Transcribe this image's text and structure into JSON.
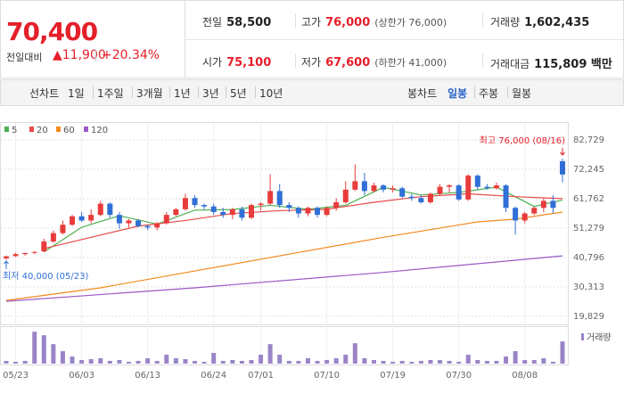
{
  "header": {
    "price": "70,400",
    "change_label": "전일대비",
    "change": "▲11,900",
    "change_pct": "+20.34%",
    "info": [
      {
        "label": "전일",
        "value": "58,500"
      },
      {
        "label": "고가",
        "value": "76,000",
        "note": "(상한가 76,000)"
      },
      {
        "label": "거래량",
        "value": "1,602,435"
      },
      {
        "label": "시가",
        "value": "75,100"
      },
      {
        "label": "저가",
        "value": "67,600",
        "note": "(하한가 41,000)"
      },
      {
        "label": "거래대금",
        "value": "115,809 백만"
      }
    ]
  },
  "toolbar": {
    "line_chart": "선차트",
    "periods": [
      "1일",
      "1주일",
      "3개월",
      "1년",
      "3년",
      "5년",
      "10년"
    ],
    "candle_chart": "봉차트",
    "candle_periods": [
      "일봉",
      "주봉",
      "월봉"
    ]
  },
  "chart_data": {
    "type": "candlestick",
    "categories": [
      null,
      "05/23",
      null,
      null,
      null,
      null,
      null,
      null,
      "06/03",
      null,
      null,
      null,
      null,
      null,
      null,
      "06/13",
      null,
      null,
      null,
      null,
      null,
      null,
      "06/24",
      null,
      null,
      null,
      null,
      "07/01",
      null,
      null,
      null,
      null,
      null,
      null,
      "07/10",
      null,
      null,
      null,
      null,
      null,
      null,
      "07/19",
      null,
      null,
      null,
      null,
      null,
      null,
      "07/30",
      null,
      null,
      null,
      null,
      null,
      null,
      "08/08",
      null,
      null,
      null,
      null
    ],
    "open": [
      40500,
      41300,
      42000,
      42500,
      43000,
      46500,
      49500,
      52500,
      55500,
      54000,
      56000,
      60000,
      56000,
      53000,
      54000,
      52000,
      51500,
      53000,
      56000,
      58000,
      62000,
      59500,
      59000,
      57000,
      56000,
      58000,
      55000,
      59500,
      60000,
      64500,
      59500,
      58500,
      56500,
      58500,
      56000,
      58500,
      60500,
      65000,
      68000,
      64500,
      66500,
      65000,
      65500,
      62500,
      62000,
      60500,
      63500,
      66000,
      66500,
      61500,
      70000,
      66000,
      65500,
      66500,
      58500,
      54000,
      56500,
      58500,
      61000,
      75100
    ],
    "high": [
      41500,
      42500,
      42500,
      43000,
      47500,
      50500,
      54000,
      56000,
      57000,
      58000,
      61000,
      60500,
      57000,
      54500,
      54500,
      52500,
      53500,
      57000,
      58500,
      63500,
      63000,
      60000,
      60000,
      58500,
      58500,
      59000,
      60000,
      60500,
      70500,
      67000,
      60500,
      59000,
      59000,
      59000,
      59000,
      62000,
      68000,
      74000,
      71000,
      67500,
      67000,
      66500,
      66000,
      63500,
      63000,
      64000,
      67000,
      67000,
      67000,
      70500,
      70500,
      67000,
      67500,
      67000,
      59000,
      57000,
      59000,
      62000,
      63000,
      76000
    ],
    "low": [
      40000,
      41000,
      41500,
      42000,
      42800,
      46000,
      49000,
      52000,
      53500,
      53000,
      55500,
      55000,
      51000,
      51500,
      51500,
      50500,
      50500,
      52500,
      55500,
      57500,
      58500,
      58000,
      56000,
      55000,
      54500,
      54000,
      54500,
      57500,
      59500,
      58500,
      57000,
      55000,
      55500,
      55000,
      55500,
      57500,
      60000,
      64500,
      63000,
      64000,
      64000,
      64000,
      62000,
      61000,
      60000,
      60000,
      63000,
      64000,
      61000,
      61000,
      65000,
      65000,
      65000,
      57000,
      49000,
      53000,
      56000,
      57000,
      56500,
      67600
    ],
    "close": [
      41200,
      42000,
      42400,
      42800,
      46500,
      49500,
      52500,
      55500,
      54000,
      56000,
      60000,
      56000,
      53000,
      54000,
      52000,
      51500,
      53000,
      56000,
      58000,
      62000,
      59500,
      59000,
      57000,
      56000,
      58000,
      55000,
      59500,
      60000,
      64500,
      59500,
      58500,
      56500,
      58500,
      56000,
      58500,
      60500,
      65000,
      68000,
      64500,
      66500,
      65000,
      65500,
      62500,
      62000,
      60500,
      63500,
      66000,
      66500,
      61500,
      70000,
      66000,
      65500,
      66500,
      58500,
      54000,
      56500,
      58500,
      61000,
      58500,
      70400
    ],
    "up_color": "#e83c3c",
    "down_color": "#2f6fd6",
    "volume": [
      192000,
      128000,
      192000,
      2304000,
      2048000,
      1408000,
      896000,
      512000,
      256000,
      320000,
      384000,
      192000,
      256000,
      128000,
      192000,
      384000,
      192000,
      640000,
      384000,
      320000,
      192000,
      128000,
      768000,
      192000,
      256000,
      192000,
      256000,
      640000,
      1408000,
      640000,
      192000,
      192000,
      384000,
      192000,
      256000,
      384000,
      640000,
      1472000,
      384000,
      256000,
      192000,
      128000,
      192000,
      128000,
      192000,
      256000,
      256000,
      192000,
      128000,
      640000,
      256000,
      192000,
      192000,
      512000,
      896000,
      256000,
      256000,
      384000,
      128000,
      1602435
    ],
    "volume_ylim": [
      0,
      2450000
    ],
    "volume_color": "#9a84c8",
    "volume_label": "거래량",
    "series": [
      {
        "name": "5",
        "color": "#4caf50",
        "x": [
          4,
          8,
          12,
          16,
          20,
          24,
          28,
          32,
          36,
          40,
          44,
          48,
          52,
          56,
          59
        ],
        "values": [
          42800,
          51600,
          55700,
          52700,
          57700,
          57900,
          59400,
          58000,
          59400,
          65800,
          63100,
          64000,
          65900,
          59000,
          61300
        ]
      },
      {
        "name": "20",
        "color": "#e84a4a",
        "x": [
          4,
          9,
          14,
          19,
          24,
          29,
          34,
          39,
          44,
          49,
          54,
          59
        ],
        "values": [
          44000,
          48000,
          52000,
          54000,
          56500,
          57500,
          58000,
          60500,
          62500,
          63500,
          62500,
          61800
        ]
      },
      {
        "name": "60",
        "color": "#f28a1e",
        "x": [
          0,
          10,
          20,
          30,
          40,
          50,
          54,
          59
        ],
        "values": [
          25500,
          30000,
          36000,
          42000,
          48000,
          53500,
          54500,
          57000
        ]
      },
      {
        "name": "120",
        "color": "#9b59c6",
        "x": [
          0,
          20,
          40,
          59
        ],
        "values": [
          25200,
          30000,
          35500,
          41400
        ]
      }
    ],
    "ylim": [
      19829,
      82729
    ],
    "yticks": [
      {
        "value": 82729,
        "label": "82,729"
      },
      {
        "value": 72245,
        "label": "72,245"
      },
      {
        "value": 61762,
        "label": "61,762"
      },
      {
        "value": 51279,
        "label": "51,279"
      },
      {
        "value": 40796,
        "label": "40,796"
      },
      {
        "value": 30313,
        "label": "30,313"
      },
      {
        "value": 19829,
        "label": "19,829"
      }
    ],
    "grid": true,
    "high_label": "최고 76,000 (08/16)",
    "low_label": "최저 40,000 (05/23)"
  }
}
